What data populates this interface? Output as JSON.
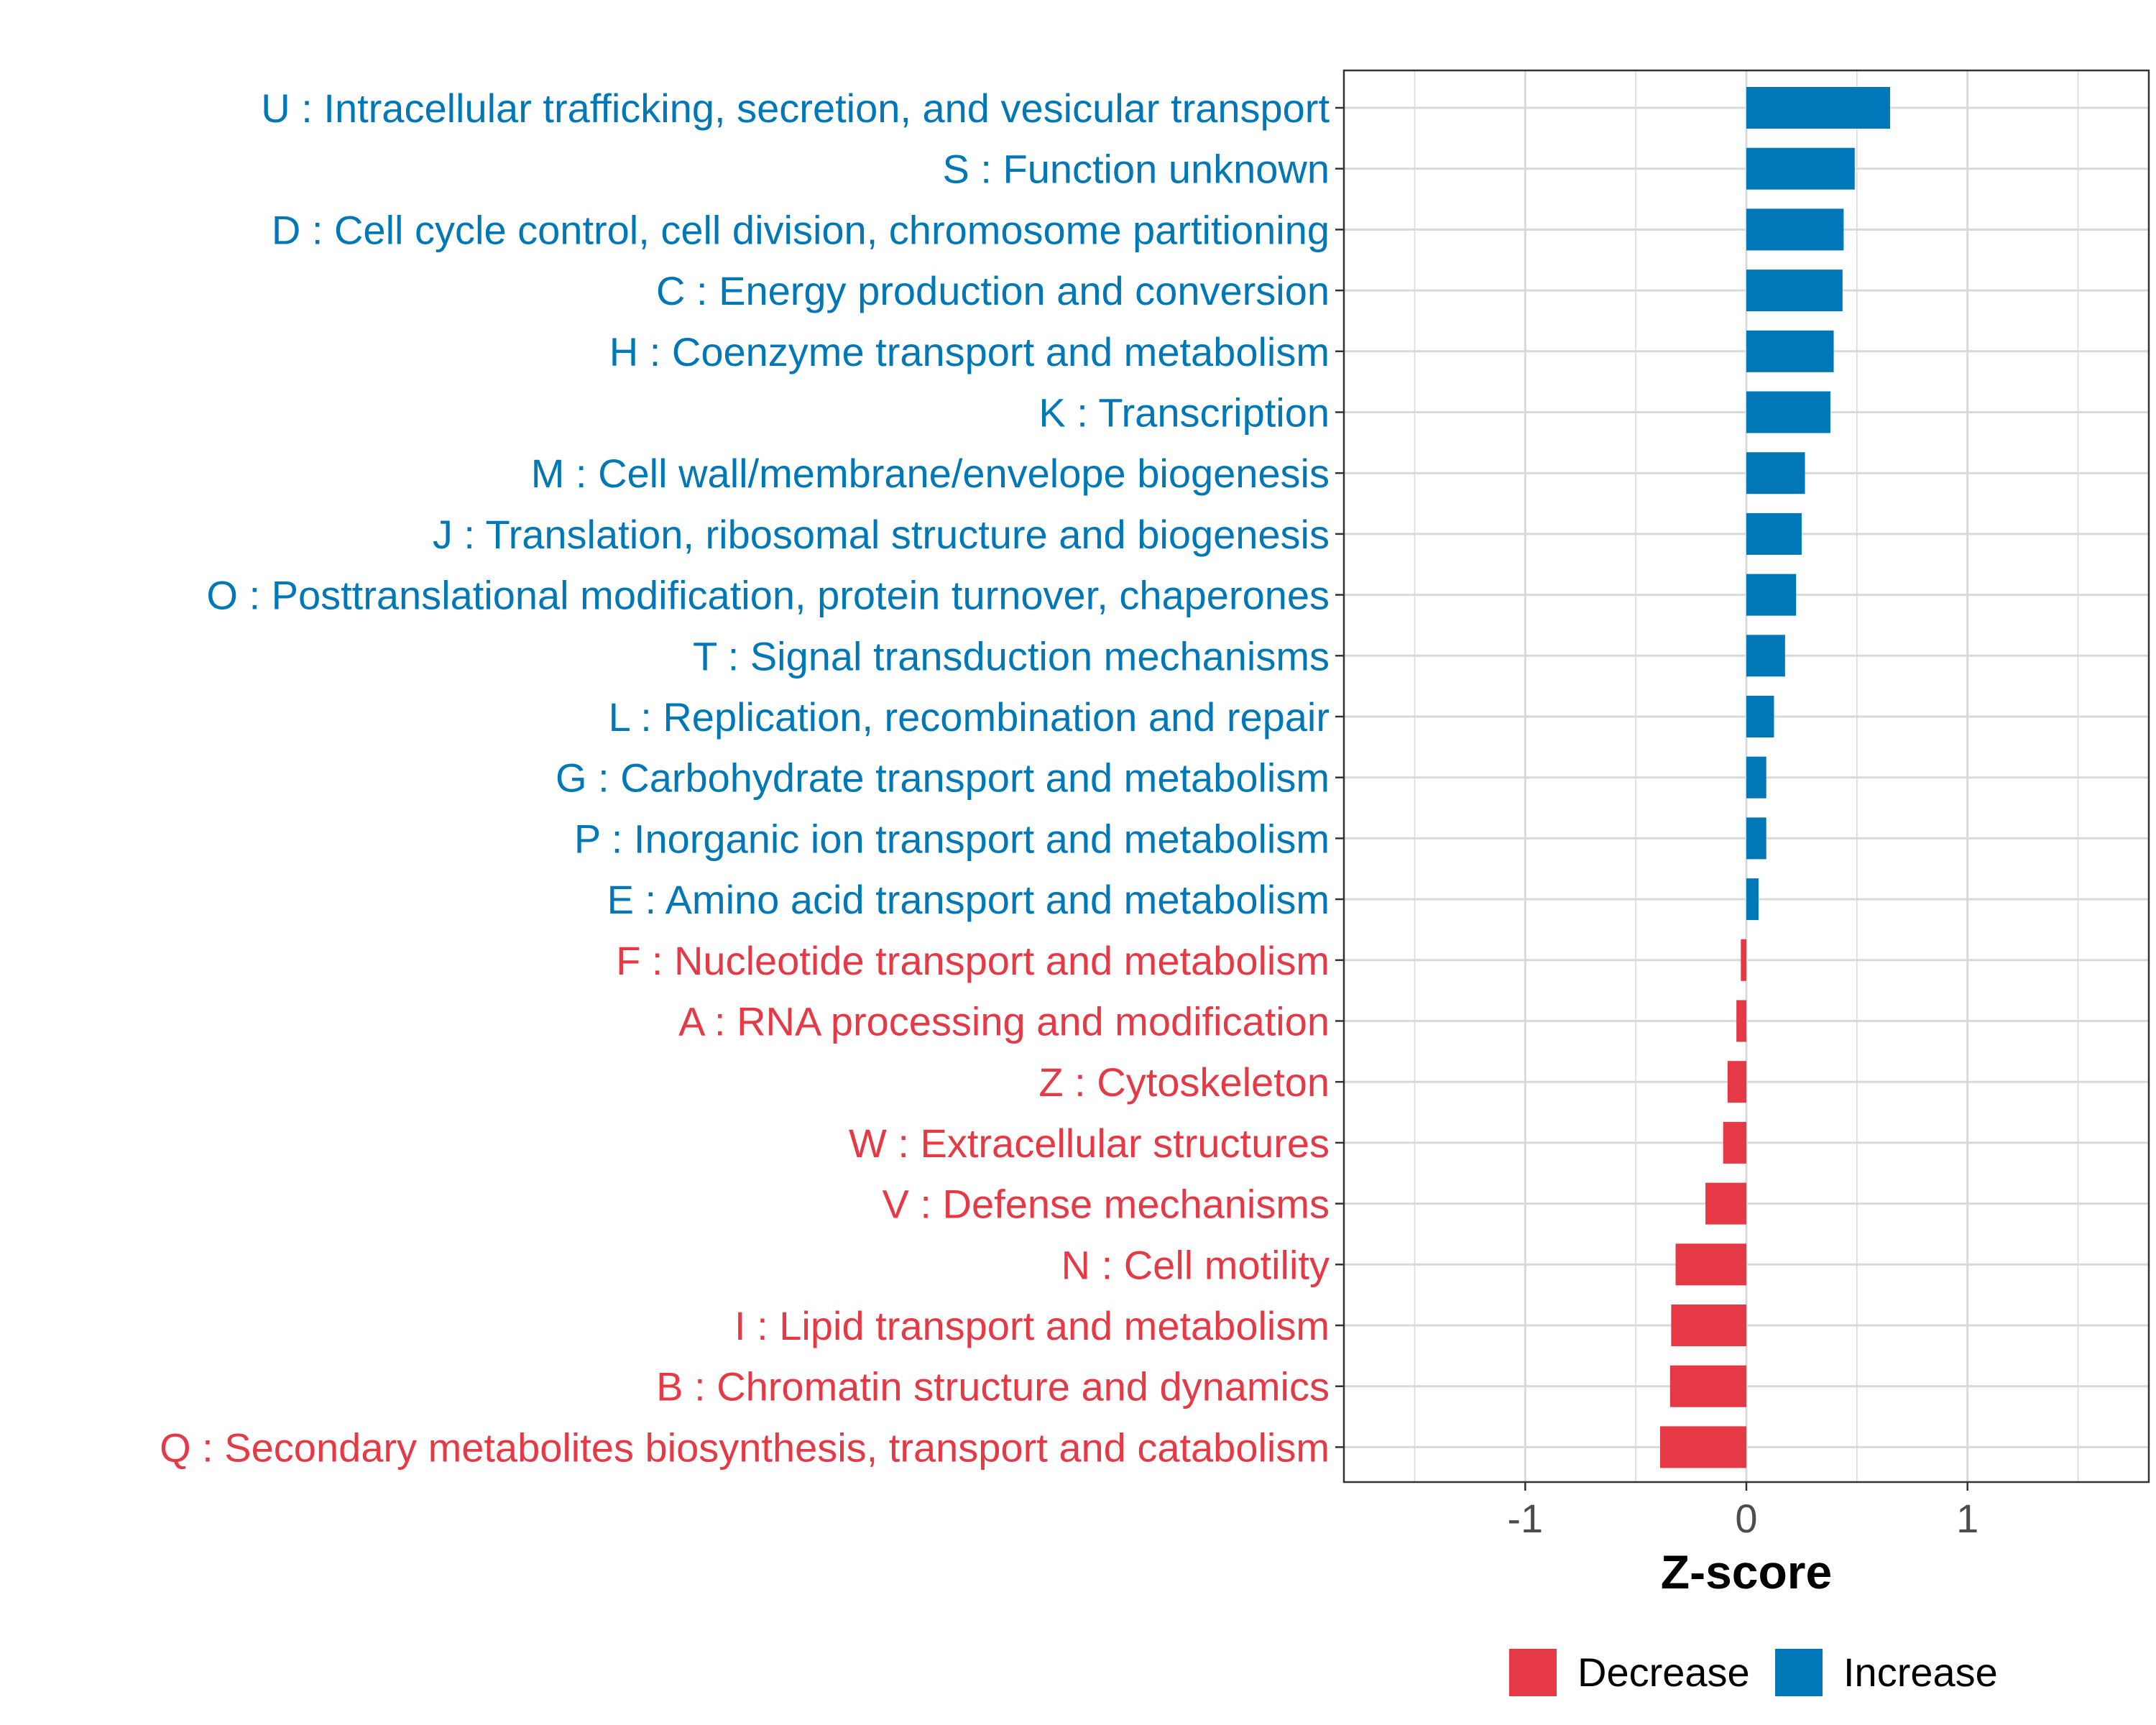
{
  "chart_data": {
    "type": "bar",
    "orientation": "horizontal",
    "xlabel": "Z-score",
    "xlim": [
      -1.82,
      1.82
    ],
    "xticks": [
      -1,
      0,
      1
    ],
    "xtick_labels": [
      "-1",
      "0",
      "1"
    ],
    "grid": true,
    "legend_position": "bottom",
    "categories": [
      {
        "label": "U : Intracellular trafficking, secretion, and vesicular transport",
        "value": 0.65,
        "direction": "Increase"
      },
      {
        "label": "S : Function unknown",
        "value": 0.49,
        "direction": "Increase"
      },
      {
        "label": "D : Cell cycle control, cell division, chromosome partitioning",
        "value": 0.44,
        "direction": "Increase"
      },
      {
        "label": "C : Energy production and conversion",
        "value": 0.435,
        "direction": "Increase"
      },
      {
        "label": "H : Coenzyme transport and metabolism",
        "value": 0.395,
        "direction": "Increase"
      },
      {
        "label": "K : Transcription",
        "value": 0.38,
        "direction": "Increase"
      },
      {
        "label": "M : Cell wall/membrane/envelope biogenesis",
        "value": 0.265,
        "direction": "Increase"
      },
      {
        "label": "J : Translation, ribosomal structure and biogenesis",
        "value": 0.25,
        "direction": "Increase"
      },
      {
        "label": "O : Posttranslational modification, protein turnover, chaperones",
        "value": 0.225,
        "direction": "Increase"
      },
      {
        "label": "T : Signal transduction mechanisms",
        "value": 0.175,
        "direction": "Increase"
      },
      {
        "label": "L : Replication, recombination and repair",
        "value": 0.125,
        "direction": "Increase"
      },
      {
        "label": "G : Carbohydrate transport and metabolism",
        "value": 0.09,
        "direction": "Increase"
      },
      {
        "label": "P : Inorganic ion transport and metabolism",
        "value": 0.09,
        "direction": "Increase"
      },
      {
        "label": "E : Amino acid transport and metabolism",
        "value": 0.055,
        "direction": "Increase"
      },
      {
        "label": "F : Nucleotide transport and metabolism",
        "value": -0.025,
        "direction": "Decrease"
      },
      {
        "label": "A : RNA processing and modification",
        "value": -0.045,
        "direction": "Decrease"
      },
      {
        "label": "Z : Cytoskeleton",
        "value": -0.085,
        "direction": "Decrease"
      },
      {
        "label": "W : Extracellular structures",
        "value": -0.105,
        "direction": "Decrease"
      },
      {
        "label": "V : Defense mechanisms",
        "value": -0.185,
        "direction": "Decrease"
      },
      {
        "label": "N : Cell motility",
        "value": -0.32,
        "direction": "Decrease"
      },
      {
        "label": "I : Lipid transport and metabolism",
        "value": -0.34,
        "direction": "Decrease"
      },
      {
        "label": "B : Chromatin structure and dynamics",
        "value": -0.345,
        "direction": "Decrease"
      },
      {
        "label": "Q : Secondary metabolites biosynthesis, transport and catabolism",
        "value": -0.39,
        "direction": "Decrease"
      }
    ],
    "legend": [
      {
        "label": "Decrease",
        "color": "#e63946"
      },
      {
        "label": "Increase",
        "color": "#0077b6"
      }
    ]
  },
  "colors": {
    "Decrease": "#e63946",
    "Increase": "#0077b6",
    "grid": "#d9d9d9",
    "axis": "#333333"
  }
}
